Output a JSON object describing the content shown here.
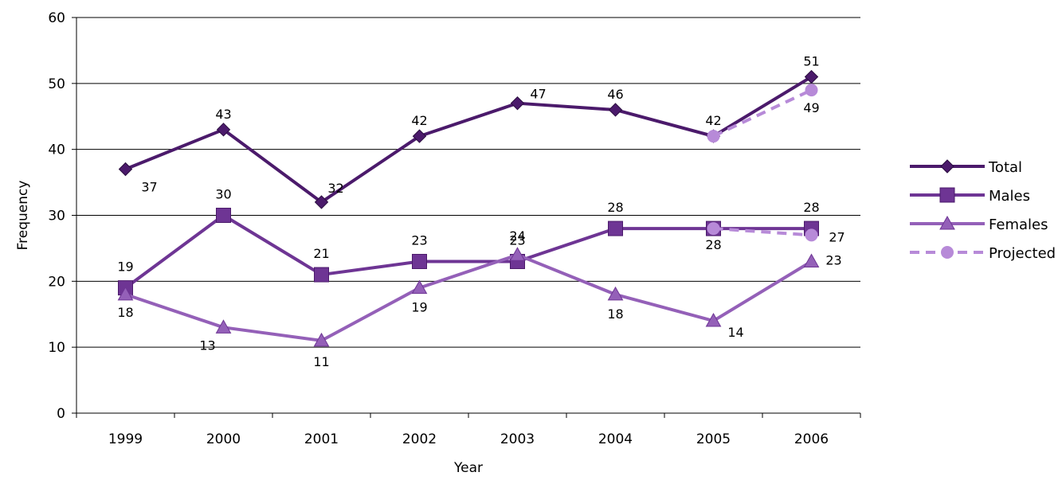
{
  "chart_data": {
    "type": "line",
    "title": "",
    "xlabel": "Year",
    "ylabel": "Frequency",
    "x": [
      "1999",
      "2000",
      "2001",
      "2002",
      "2003",
      "2004",
      "2005",
      "2006"
    ],
    "ylim": [
      0,
      60
    ],
    "yticks": [
      "0",
      "10",
      "20",
      "30",
      "40",
      "50",
      "60"
    ],
    "grid": true,
    "legend_position": "right",
    "series": [
      {
        "name": "Total",
        "color": "#4b1a6b",
        "marker": "diamond",
        "dashed": false,
        "values": [
          37,
          43,
          32,
          42,
          47,
          46,
          42,
          51
        ],
        "labels": [
          "37",
          "43",
          "32",
          "42",
          "47",
          "46",
          "42",
          "51"
        ]
      },
      {
        "name": "Males",
        "color": "#6e3594",
        "marker": "square",
        "dashed": false,
        "values": [
          19,
          30,
          21,
          23,
          23,
          28,
          28,
          28
        ],
        "labels": [
          "19",
          "30",
          "21",
          "23",
          "23",
          "28",
          "28",
          "28"
        ]
      },
      {
        "name": "Females",
        "color": "#9460b8",
        "marker": "triangle",
        "dashed": false,
        "values": [
          18,
          13,
          11,
          19,
          24,
          18,
          14,
          23
        ],
        "labels": [
          "18",
          "13",
          "11",
          "19",
          "24",
          "18",
          "14",
          "23"
        ]
      },
      {
        "name": "Projected",
        "color": "#b78ad8",
        "marker": "circle",
        "dashed": true,
        "segments": [
          {
            "x": [
              "2005",
              "2006"
            ],
            "values": [
              42,
              49
            ],
            "labels": [
              "",
              "49"
            ]
          },
          {
            "x": [
              "2005",
              "2006"
            ],
            "values": [
              28,
              27
            ],
            "labels": [
              "",
              "27"
            ]
          }
        ]
      }
    ]
  }
}
